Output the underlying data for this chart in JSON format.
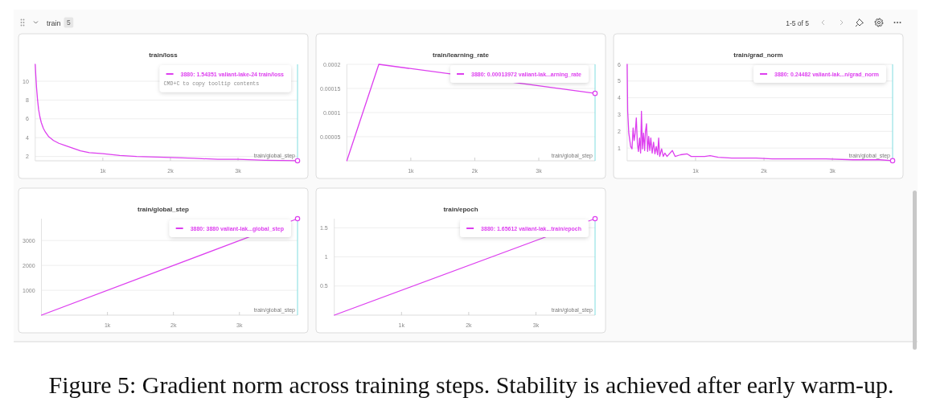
{
  "chart_data": [
    {
      "type": "line",
      "title": "train/loss",
      "xlabel": "train/global_step",
      "x": [
        0,
        10,
        20,
        35,
        50,
        70,
        90,
        120,
        150,
        200,
        270,
        350,
        430,
        550,
        670,
        800,
        1000,
        1250,
        1500,
        2000,
        2350,
        2700,
        3000,
        3400,
        3880
      ],
      "series": [
        {
          "color": "#dd3fef",
          "values": [
            11.8,
            10.5,
            9.3,
            8.0,
            7.0,
            6.2,
            5.6,
            5.0,
            4.6,
            4.1,
            3.7,
            3.4,
            3.2,
            2.9,
            2.6,
            2.4,
            2.3,
            2.1,
            2.0,
            1.9,
            1.8,
            1.7,
            1.7,
            1.6,
            1.54351
          ]
        },
        {
          "type": "scatter",
          "marker": "circle",
          "color": "#dd3fef",
          "values": [
            null,
            null,
            null,
            null,
            null,
            null,
            null,
            null,
            null,
            null,
            null,
            null,
            null,
            null,
            null,
            null,
            null,
            null,
            null,
            null,
            null,
            null,
            null,
            null,
            1.54351
          ]
        }
      ],
      "xlim": [
        0,
        3880
      ],
      "xticks": [
        {
          "value": 1000,
          "label": "1k"
        },
        {
          "value": 2000,
          "label": "2k"
        },
        {
          "value": 3000,
          "label": "3k"
        }
      ],
      "ylim": [
        1.54,
        11.8
      ],
      "yticks": [
        2,
        4,
        6,
        8,
        10
      ],
      "grid": "y",
      "ref_lines": [
        {
          "axis": "x",
          "value": 3880,
          "color": "#80dde0"
        }
      ],
      "annotations": [
        "3880: 1.54351 valiant-lake-24 train/loss",
        "CMD+C to copy tooltip contents"
      ]
    },
    {
      "type": "line",
      "title": "train/learning_rate",
      "xlabel": "train/global_step",
      "x": [
        0,
        500,
        3880
      ],
      "series": [
        {
          "color": "#dd3fef",
          "values": [
            0,
            0.0002,
            0.00013972
          ]
        },
        {
          "type": "scatter",
          "marker": "circle",
          "color": "#dd3fef",
          "values": [
            null,
            null,
            0.00013972
          ]
        }
      ],
      "xlim": [
        0,
        3880
      ],
      "xticks": [
        {
          "value": 1000,
          "label": "1k"
        },
        {
          "value": 2000,
          "label": "2k"
        },
        {
          "value": 3000,
          "label": "3k"
        }
      ],
      "ylim": [
        0,
        0.0002
      ],
      "yticks": [
        {
          "value": 5e-05,
          "label": "0.00005"
        },
        0.0001,
        0.00015,
        0.0002
      ],
      "grid": "y",
      "ref_lines": [
        {
          "axis": "x",
          "value": 3880,
          "color": "#80dde0"
        }
      ],
      "annotations": [
        "3880: 0.00013972 valiant-lak...arning_rate"
      ]
    },
    {
      "type": "line",
      "title": "train/grad_norm",
      "xlabel": "train/global_step",
      "x": [
        0,
        8,
        24,
        51,
        71,
        87,
        102,
        118,
        134,
        150,
        165,
        181,
        197,
        209,
        224,
        240,
        256,
        268,
        283,
        299,
        315,
        331,
        346,
        366,
        386,
        406,
        425,
        445,
        461,
        476,
        504,
        528,
        551,
        583,
        661,
        701,
        780,
        878,
        937,
        1134,
        1213,
        1331,
        1528,
        1724,
        1882,
        2118,
        2512,
        2906,
        3299,
        3693,
        3880
      ],
      "series": [
        {
          "color": "#dd3fef",
          "values": [
            6.0,
            3.2,
            1.9,
            1.1,
            0.95,
            2.2,
            1.45,
            1.9,
            2.8,
            1.25,
            0.8,
            1.6,
            0.7,
            3.2,
            0.95,
            1.9,
            0.85,
            2.0,
            2.45,
            0.8,
            1.7,
            0.85,
            1.6,
            0.7,
            1.35,
            0.65,
            1.1,
            0.6,
            1.6,
            0.5,
            0.95,
            0.5,
            0.7,
            0.5,
            0.85,
            0.5,
            0.6,
            0.65,
            0.5,
            0.5,
            0.55,
            0.45,
            0.4,
            0.4,
            0.4,
            0.35,
            0.35,
            0.35,
            0.3,
            0.3,
            0.24482
          ]
        },
        {
          "type": "scatter",
          "marker": "circle",
          "color": "#dd3fef",
          "values": [
            null,
            null,
            null,
            null,
            null,
            null,
            null,
            null,
            null,
            null,
            null,
            null,
            null,
            null,
            null,
            null,
            null,
            null,
            null,
            null,
            null,
            null,
            null,
            null,
            null,
            null,
            null,
            null,
            null,
            null,
            null,
            null,
            null,
            null,
            null,
            null,
            null,
            null,
            null,
            null,
            null,
            null,
            null,
            null,
            null,
            null,
            null,
            null,
            null,
            null,
            0.24482
          ]
        }
      ],
      "xlim": [
        0,
        3880
      ],
      "xticks": [
        {
          "value": 1000,
          "label": "1k"
        },
        {
          "value": 2000,
          "label": "2k"
        },
        {
          "value": 3000,
          "label": "3k"
        }
      ],
      "ylim": [
        0.24,
        6
      ],
      "yticks": [
        1,
        2,
        3,
        4,
        5,
        6
      ],
      "grid": "y",
      "ref_lines": [
        {
          "axis": "x",
          "value": 3880,
          "color": "#80dde0"
        }
      ],
      "annotations": [
        "3880: 0.24482 valiant-lak...n/grad_norm"
      ]
    },
    {
      "type": "line",
      "title": "train/global_step",
      "xlabel": "train/global_step",
      "x": [
        0,
        3880
      ],
      "series": [
        {
          "color": "#dd3fef",
          "values": [
            0,
            3880
          ]
        },
        {
          "type": "scatter",
          "marker": "circle",
          "color": "#dd3fef",
          "values": [
            null,
            3880
          ]
        }
      ],
      "xlim": [
        0,
        3880
      ],
      "xticks": [
        {
          "value": 1000,
          "label": "1k"
        },
        {
          "value": 2000,
          "label": "2k"
        },
        {
          "value": 3000,
          "label": "3k"
        }
      ],
      "ylim": [
        0,
        3880
      ],
      "yticks": [
        1000,
        2000,
        3000
      ],
      "grid": "y",
      "ref_lines": [
        {
          "axis": "x",
          "value": 3880,
          "color": "#80dde0"
        }
      ],
      "annotations": [
        "3880: 3880 valiant-lak...global_step"
      ]
    },
    {
      "type": "line",
      "title": "train/epoch",
      "xlabel": "train/global_step",
      "x": [
        0,
        3880
      ],
      "series": [
        {
          "color": "#dd3fef",
          "values": [
            0,
            1.65612
          ]
        },
        {
          "type": "scatter",
          "marker": "circle",
          "color": "#dd3fef",
          "values": [
            null,
            1.65612
          ]
        }
      ],
      "xlim": [
        0,
        3880
      ],
      "xticks": [
        {
          "value": 1000,
          "label": "1k"
        },
        {
          "value": 2000,
          "label": "2k"
        },
        {
          "value": 3000,
          "label": "3k"
        }
      ],
      "ylim": [
        0,
        1.65612
      ],
      "yticks": [
        0.5,
        1,
        1.5
      ],
      "grid": "y",
      "ref_lines": [
        {
          "axis": "x",
          "value": 3880,
          "color": "#80dde0"
        }
      ],
      "annotations": [
        "3880: 1.65612 valiant-lak...train/epoch"
      ]
    },
    {
      "type": "other",
      "title": "train",
      "annotations": [
        "5",
        "1-5 of 5",
        "Figure 5: Gradient norm across training steps. Stability is achieved after early warm-up."
      ]
    }
  ]
}
